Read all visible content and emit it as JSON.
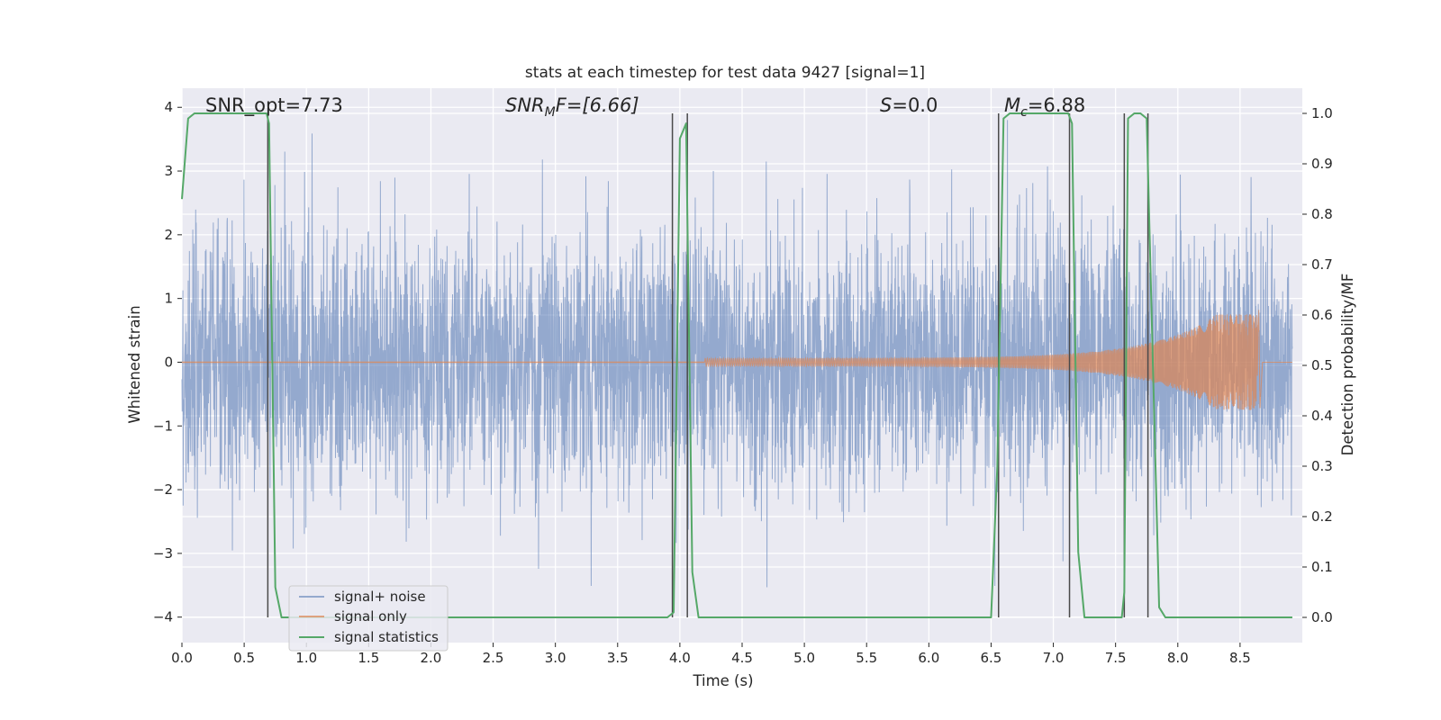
{
  "chart_data": {
    "type": "line",
    "title": "stats at each timestep for test data 9427 [signal=1]",
    "xlabel": "Time (s)",
    "ylabel_left": "Whitened strain",
    "ylabel_right": "Detection probability/MF",
    "xlim": [
      0.0,
      9.0
    ],
    "ylim_left": [
      -4.4,
      4.3
    ],
    "ylim_right": [
      -0.05,
      1.05
    ],
    "xticks": [
      "0.0",
      "0.5",
      "1.0",
      "1.5",
      "2.0",
      "2.5",
      "3.0",
      "3.5",
      "4.0",
      "4.5",
      "5.0",
      "5.5",
      "6.0",
      "6.5",
      "7.0",
      "7.5",
      "8.0",
      "8.5"
    ],
    "yticks_left": [
      "4",
      "3",
      "2",
      "1",
      "0",
      "−1",
      "−2",
      "−3",
      "−4"
    ],
    "yticks_right": [
      "1.0",
      "0.9",
      "0.8",
      "0.7",
      "0.6",
      "0.5",
      "0.4",
      "0.3",
      "0.2",
      "0.1",
      "0.0"
    ],
    "grid": true,
    "background": "#EAEAF2",
    "legend_placement": "lower-left",
    "annotations": {
      "snr_opt": "SNR_opt=7.73",
      "snr_mf_base": "SNR",
      "snr_mf_sub": "M",
      "snr_mf_rest": "F=[6.66]",
      "s_base": "S",
      "s_rest": "=0.0",
      "mc_base": "M",
      "mc_sub": "c",
      "mc_rest": "=6.88"
    },
    "series": [
      {
        "name": "signal+ noise",
        "color": "#4C72B0",
        "kind": "noise",
        "sigma": 1.0,
        "peak_abs": 3.8,
        "duration": 8.92
      },
      {
        "name": "signal only",
        "color": "#DD8452",
        "kind": "chirp",
        "start": 4.2,
        "end": 8.65,
        "end_amplitude": 0.75,
        "merger_extent": [
          -0.72,
          0.82
        ]
      },
      {
        "name": "signal statistics",
        "color": "#55A868",
        "axis": "right",
        "x": [
          0.0,
          0.05,
          0.1,
          0.15,
          0.2,
          0.68,
          0.7,
          0.75,
          0.8,
          3.9,
          3.95,
          4.0,
          4.05,
          4.1,
          4.15,
          4.2,
          6.5,
          6.55,
          6.6,
          6.65,
          6.7,
          7.12,
          7.15,
          7.2,
          7.25,
          7.55,
          7.57,
          7.6,
          7.65,
          7.7,
          7.75,
          7.8,
          7.85,
          7.9,
          8.0,
          8.92
        ],
        "y": [
          0.83,
          0.99,
          1.0,
          1.0,
          1.0,
          1.0,
          0.98,
          0.06,
          0.0,
          0.0,
          0.01,
          0.95,
          0.98,
          0.09,
          0.0,
          0.0,
          0.0,
          0.3,
          0.99,
          1.0,
          1.0,
          1.0,
          0.98,
          0.13,
          0.0,
          0.0,
          0.05,
          0.99,
          1.0,
          1.0,
          0.99,
          0.5,
          0.02,
          0.0,
          0.0,
          0.0
        ]
      }
    ],
    "vertical_markers": [
      {
        "x": 0.69,
        "y": [
          0.0,
          1.0
        ]
      },
      {
        "x": 3.94,
        "y": [
          0.0,
          1.0
        ]
      },
      {
        "x": 4.06,
        "y": [
          0.0,
          1.0
        ]
      },
      {
        "x": 6.56,
        "y": [
          0.0,
          1.0
        ]
      },
      {
        "x": 7.13,
        "y": [
          0.0,
          1.0
        ]
      },
      {
        "x": 7.57,
        "y": [
          0.0,
          1.0
        ]
      },
      {
        "x": 7.76,
        "y": [
          0.0,
          1.0
        ]
      }
    ],
    "marker_color": "#4A4A4A"
  }
}
